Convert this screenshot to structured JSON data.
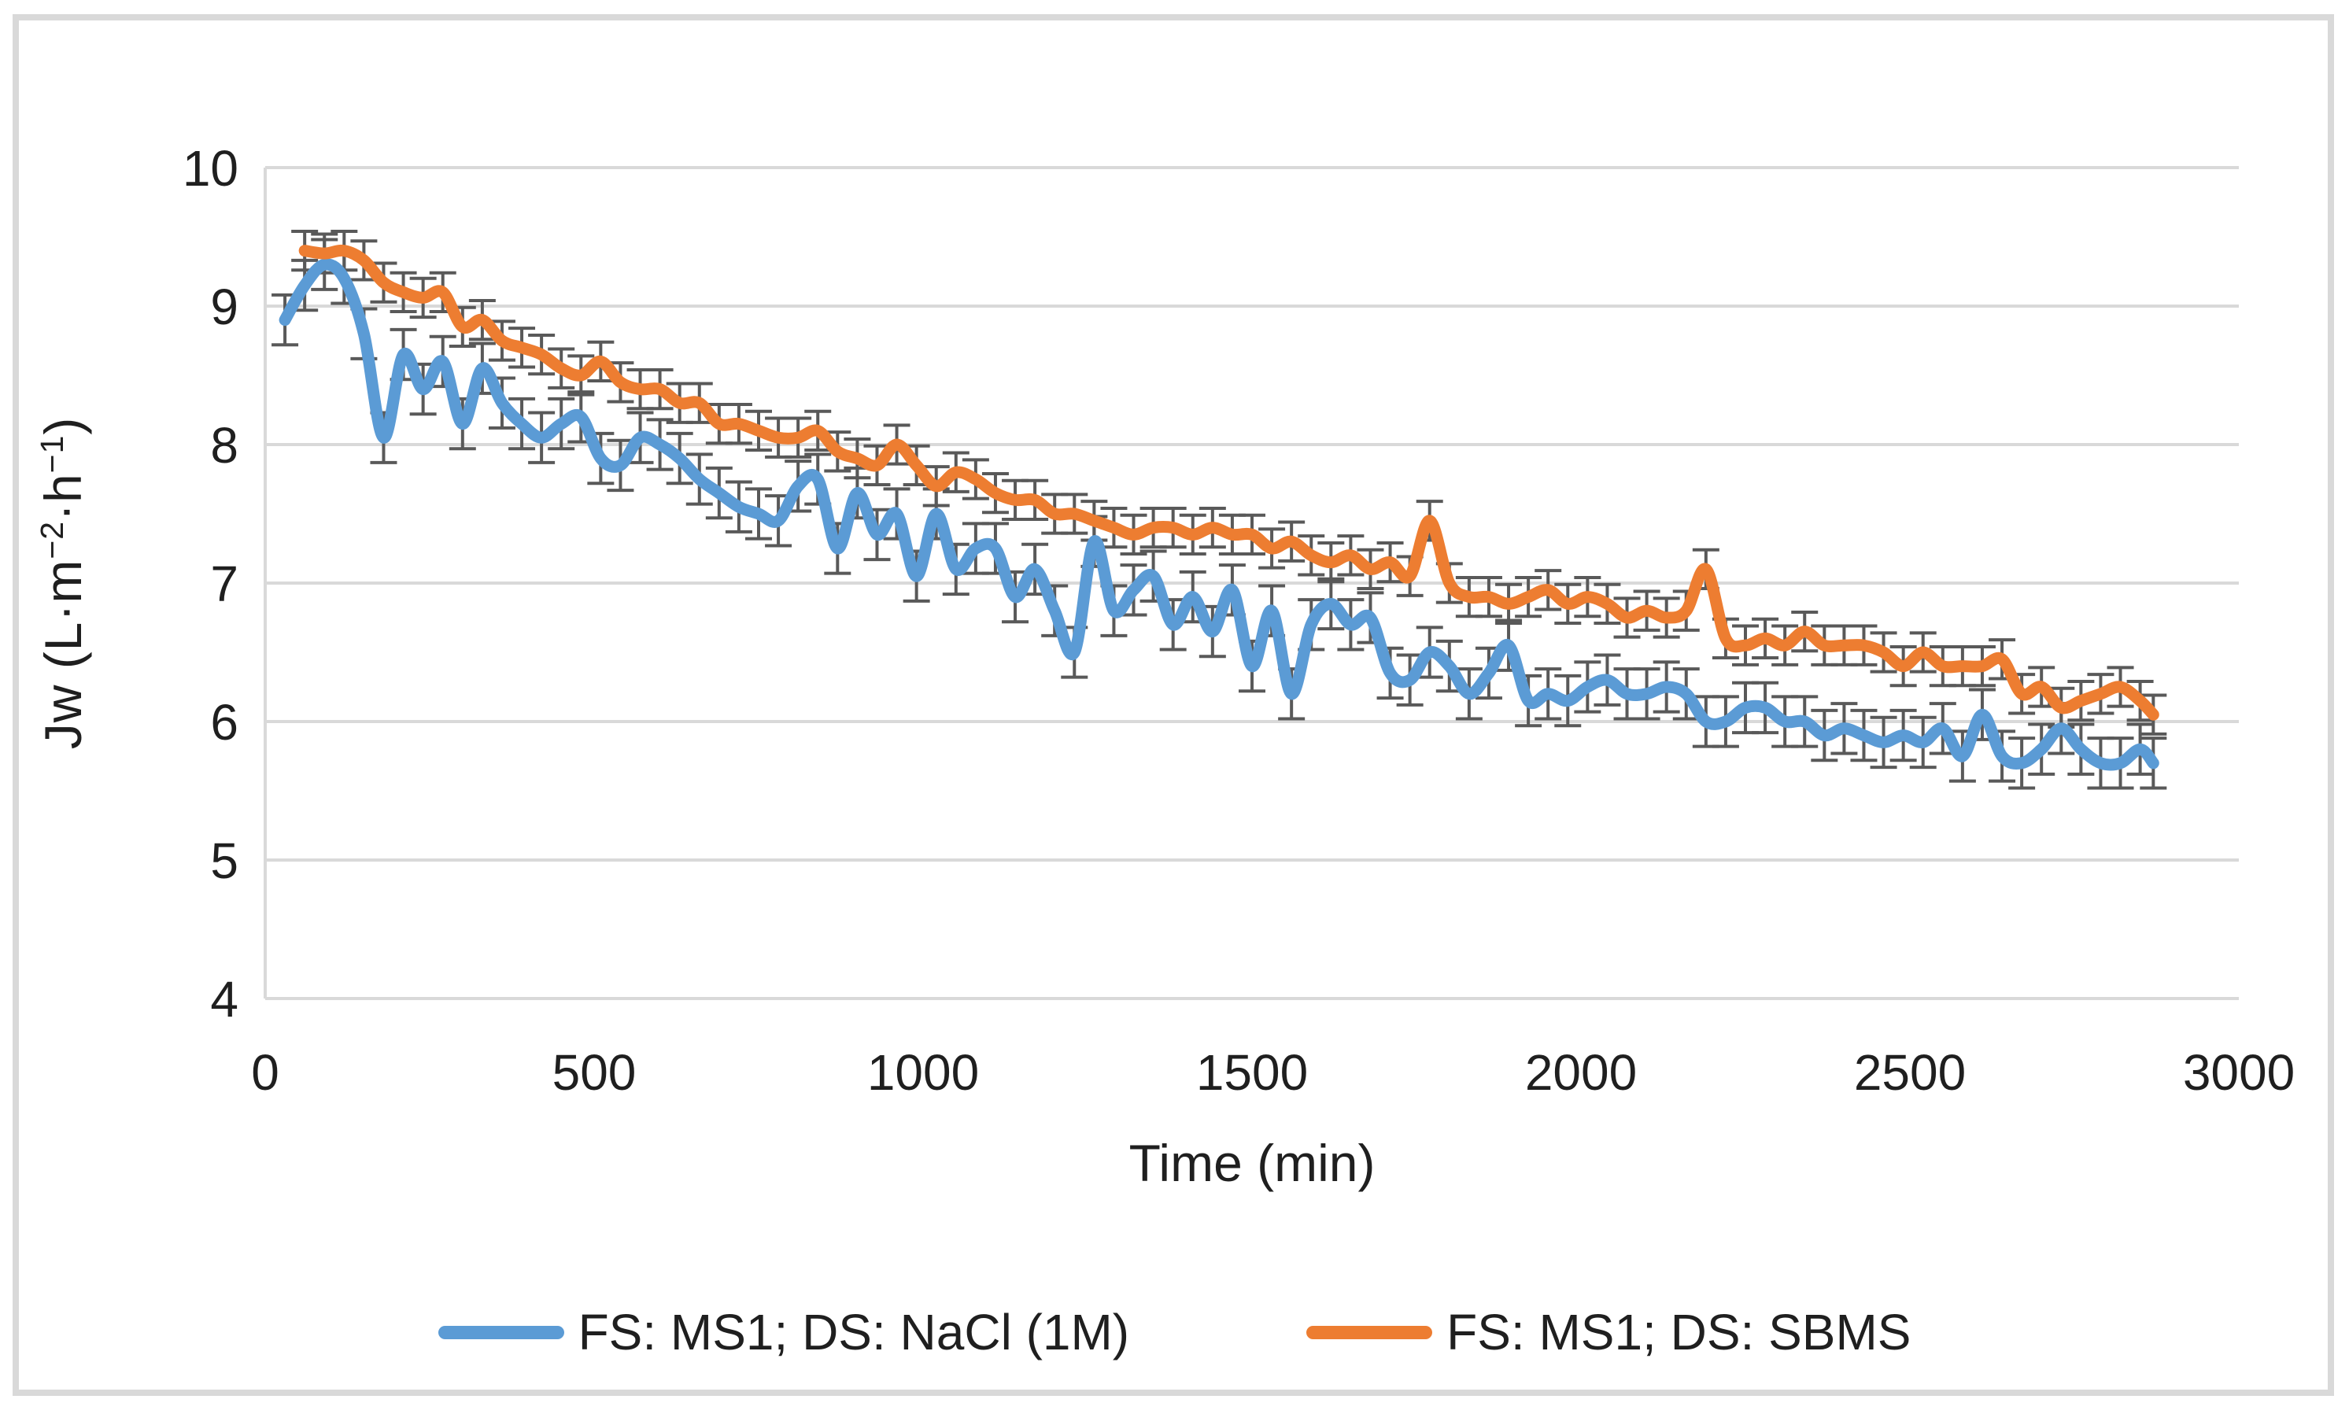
{
  "chart_data": {
    "type": "line",
    "title": "",
    "xlabel": "Time (min)",
    "ylabel": "Jw (L·m−2·h−1)",
    "ylabel_segments": [
      {
        "t": "Jw (L·m"
      },
      {
        "t": "−2",
        "sup": true
      },
      {
        "t": "·h"
      },
      {
        "t": "−1",
        "sup": true
      },
      {
        "t": ")"
      }
    ],
    "xlim": [
      0,
      3000
    ],
    "ylim": [
      4,
      10
    ],
    "x_ticks": [
      0,
      500,
      1000,
      1500,
      2000,
      2500,
      3000
    ],
    "y_ticks": [
      4,
      5,
      6,
      7,
      8,
      9,
      10
    ],
    "grid": "horizontal",
    "gridline_color": "#D9D9D9",
    "error_bar_color": "#595959",
    "legend_position": "bottom-center",
    "series": [
      {
        "name": "FS: MS1; DS: NaCl (1M)",
        "color": "#5B9BD5",
        "error": 0.18,
        "points": [
          [
            30,
            8.9
          ],
          [
            60,
            9.15
          ],
          [
            90,
            9.3
          ],
          [
            120,
            9.2
          ],
          [
            150,
            8.8
          ],
          [
            180,
            8.05
          ],
          [
            210,
            8.65
          ],
          [
            240,
            8.4
          ],
          [
            270,
            8.6
          ],
          [
            300,
            8.15
          ],
          [
            330,
            8.55
          ],
          [
            360,
            8.3
          ],
          [
            390,
            8.15
          ],
          [
            420,
            8.05
          ],
          [
            450,
            8.15
          ],
          [
            480,
            8.2
          ],
          [
            510,
            7.9
          ],
          [
            540,
            7.85
          ],
          [
            570,
            8.05
          ],
          [
            600,
            8.0
          ],
          [
            630,
            7.9
          ],
          [
            660,
            7.75
          ],
          [
            690,
            7.65
          ],
          [
            720,
            7.55
          ],
          [
            750,
            7.5
          ],
          [
            780,
            7.45
          ],
          [
            810,
            7.7
          ],
          [
            840,
            7.75
          ],
          [
            870,
            7.25
          ],
          [
            900,
            7.65
          ],
          [
            930,
            7.35
          ],
          [
            960,
            7.5
          ],
          [
            990,
            7.05
          ],
          [
            1020,
            7.5
          ],
          [
            1050,
            7.1
          ],
          [
            1080,
            7.25
          ],
          [
            1110,
            7.25
          ],
          [
            1140,
            6.9
          ],
          [
            1170,
            7.1
          ],
          [
            1200,
            6.8
          ],
          [
            1230,
            6.5
          ],
          [
            1260,
            7.3
          ],
          [
            1290,
            6.8
          ],
          [
            1320,
            6.95
          ],
          [
            1350,
            7.05
          ],
          [
            1380,
            6.7
          ],
          [
            1410,
            6.9
          ],
          [
            1440,
            6.65
          ],
          [
            1470,
            6.95
          ],
          [
            1500,
            6.4
          ],
          [
            1530,
            6.8
          ],
          [
            1560,
            6.2
          ],
          [
            1590,
            6.7
          ],
          [
            1620,
            6.85
          ],
          [
            1650,
            6.7
          ],
          [
            1680,
            6.75
          ],
          [
            1710,
            6.35
          ],
          [
            1740,
            6.3
          ],
          [
            1770,
            6.5
          ],
          [
            1800,
            6.4
          ],
          [
            1830,
            6.2
          ],
          [
            1860,
            6.35
          ],
          [
            1890,
            6.55
          ],
          [
            1920,
            6.15
          ],
          [
            1950,
            6.2
          ],
          [
            1980,
            6.15
          ],
          [
            2010,
            6.25
          ],
          [
            2040,
            6.3
          ],
          [
            2070,
            6.2
          ],
          [
            2100,
            6.2
          ],
          [
            2130,
            6.25
          ],
          [
            2160,
            6.2
          ],
          [
            2190,
            6.0
          ],
          [
            2220,
            6.0
          ],
          [
            2250,
            6.1
          ],
          [
            2280,
            6.1
          ],
          [
            2310,
            6.0
          ],
          [
            2340,
            6.0
          ],
          [
            2370,
            5.9
          ],
          [
            2400,
            5.95
          ],
          [
            2430,
            5.9
          ],
          [
            2460,
            5.85
          ],
          [
            2490,
            5.9
          ],
          [
            2520,
            5.85
          ],
          [
            2550,
            5.95
          ],
          [
            2580,
            5.75
          ],
          [
            2610,
            6.05
          ],
          [
            2640,
            5.75
          ],
          [
            2670,
            5.7
          ],
          [
            2700,
            5.8
          ],
          [
            2730,
            5.95
          ],
          [
            2760,
            5.8
          ],
          [
            2790,
            5.7
          ],
          [
            2820,
            5.7
          ],
          [
            2850,
            5.8
          ],
          [
            2870,
            5.7
          ]
        ]
      },
      {
        "name": "FS: MS1; DS: SBMS",
        "color": "#ED7D31",
        "error": 0.14,
        "points": [
          [
            60,
            9.4
          ],
          [
            90,
            9.38
          ],
          [
            120,
            9.4
          ],
          [
            150,
            9.33
          ],
          [
            180,
            9.17
          ],
          [
            210,
            9.1
          ],
          [
            240,
            9.06
          ],
          [
            270,
            9.1
          ],
          [
            300,
            8.85
          ],
          [
            330,
            8.9
          ],
          [
            360,
            8.75
          ],
          [
            390,
            8.7
          ],
          [
            420,
            8.65
          ],
          [
            450,
            8.55
          ],
          [
            480,
            8.5
          ],
          [
            510,
            8.6
          ],
          [
            540,
            8.45
          ],
          [
            570,
            8.4
          ],
          [
            600,
            8.4
          ],
          [
            630,
            8.3
          ],
          [
            660,
            8.3
          ],
          [
            690,
            8.15
          ],
          [
            720,
            8.15
          ],
          [
            750,
            8.1
          ],
          [
            780,
            8.05
          ],
          [
            810,
            8.05
          ],
          [
            840,
            8.1
          ],
          [
            870,
            7.95
          ],
          [
            900,
            7.9
          ],
          [
            930,
            7.85
          ],
          [
            960,
            8.0
          ],
          [
            990,
            7.85
          ],
          [
            1020,
            7.7
          ],
          [
            1050,
            7.8
          ],
          [
            1080,
            7.75
          ],
          [
            1110,
            7.65
          ],
          [
            1140,
            7.6
          ],
          [
            1170,
            7.6
          ],
          [
            1200,
            7.5
          ],
          [
            1230,
            7.5
          ],
          [
            1260,
            7.45
          ],
          [
            1290,
            7.4
          ],
          [
            1320,
            7.35
          ],
          [
            1350,
            7.4
          ],
          [
            1380,
            7.4
          ],
          [
            1410,
            7.35
          ],
          [
            1440,
            7.4
          ],
          [
            1470,
            7.35
          ],
          [
            1500,
            7.35
          ],
          [
            1530,
            7.25
          ],
          [
            1560,
            7.3
          ],
          [
            1590,
            7.2
          ],
          [
            1620,
            7.15
          ],
          [
            1650,
            7.2
          ],
          [
            1680,
            7.1
          ],
          [
            1710,
            7.15
          ],
          [
            1740,
            7.05
          ],
          [
            1770,
            7.45
          ],
          [
            1800,
            7.0
          ],
          [
            1830,
            6.9
          ],
          [
            1860,
            6.9
          ],
          [
            1890,
            6.85
          ],
          [
            1920,
            6.9
          ],
          [
            1950,
            6.95
          ],
          [
            1980,
            6.85
          ],
          [
            2010,
            6.9
          ],
          [
            2040,
            6.85
          ],
          [
            2070,
            6.75
          ],
          [
            2100,
            6.8
          ],
          [
            2130,
            6.75
          ],
          [
            2160,
            6.8
          ],
          [
            2190,
            7.1
          ],
          [
            2220,
            6.6
          ],
          [
            2250,
            6.55
          ],
          [
            2280,
            6.6
          ],
          [
            2310,
            6.55
          ],
          [
            2340,
            6.65
          ],
          [
            2370,
            6.55
          ],
          [
            2400,
            6.55
          ],
          [
            2430,
            6.55
          ],
          [
            2460,
            6.5
          ],
          [
            2490,
            6.4
          ],
          [
            2520,
            6.5
          ],
          [
            2550,
            6.4
          ],
          [
            2580,
            6.4
          ],
          [
            2610,
            6.4
          ],
          [
            2640,
            6.45
          ],
          [
            2670,
            6.2
          ],
          [
            2700,
            6.25
          ],
          [
            2730,
            6.1
          ],
          [
            2760,
            6.15
          ],
          [
            2790,
            6.2
          ],
          [
            2820,
            6.25
          ],
          [
            2850,
            6.15
          ],
          [
            2870,
            6.05
          ]
        ]
      }
    ]
  }
}
